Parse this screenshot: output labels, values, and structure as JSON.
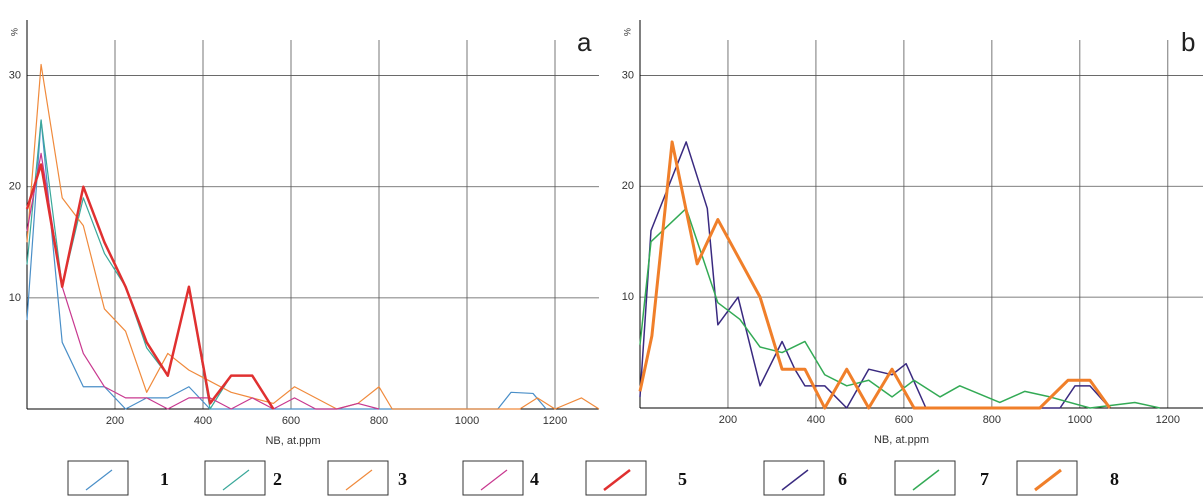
{
  "chart_data": [
    {
      "type": "line",
      "panel_label": "a",
      "x_label": "NB, at.ppm",
      "y_label": "%",
      "xlim": [
        0,
        1300
      ],
      "ylim": [
        0,
        35
      ],
      "xticks": [
        200,
        400,
        600,
        800,
        1000,
        1200
      ],
      "yticks": [
        10,
        20,
        30
      ],
      "grid": true,
      "legend": "bottom",
      "series": [
        {
          "name": "1",
          "color": "#4a8fc8",
          "line_width": 1.2,
          "x": [
            0,
            32,
            80,
            128,
            176,
            224,
            272,
            320,
            368,
            416,
            1070,
            1100,
            1150,
            1180
          ],
          "values": [
            8,
            26,
            6,
            2,
            2,
            0,
            1,
            1,
            2,
            0,
            0,
            1.5,
            1.4,
            0
          ]
        },
        {
          "name": "2",
          "color": "#3aa89a",
          "line_width": 1.2,
          "x": [
            0,
            32,
            80,
            128,
            176,
            224,
            272,
            320,
            368,
            416,
            464,
            512,
            560
          ],
          "values": [
            13,
            26,
            11,
            19,
            14,
            11,
            5.5,
            3,
            11,
            0,
            3,
            3,
            0
          ]
        },
        {
          "name": "3",
          "color": "#f08a3c",
          "line_width": 1.2,
          "x": [
            0,
            32,
            80,
            128,
            176,
            224,
            272,
            320,
            368,
            416,
            464,
            512,
            560,
            608,
            656,
            704,
            752,
            800,
            830,
            1120,
            1160,
            1200,
            1260,
            1300
          ],
          "values": [
            15,
            31,
            19,
            16.5,
            9,
            7,
            1.5,
            5,
            3.5,
            2.5,
            1.5,
            1,
            0.5,
            2,
            1,
            0,
            0.5,
            2,
            0,
            0,
            1,
            0,
            1,
            0
          ]
        },
        {
          "name": "4",
          "color": "#c8388f",
          "line_width": 1.2,
          "x": [
            0,
            32,
            80,
            128,
            176,
            224,
            272,
            320,
            368,
            416,
            464,
            512,
            560,
            608,
            656,
            704,
            752,
            800
          ],
          "values": [
            16,
            23,
            11,
            5,
            2,
            1,
            1,
            0,
            1,
            1,
            0,
            1,
            0,
            1,
            0,
            0,
            0.5,
            0
          ]
        },
        {
          "name": "5",
          "color": "#e03030",
          "line_width": 2.5,
          "x": [
            0,
            32,
            80,
            128,
            176,
            224,
            272,
            320,
            368,
            416,
            464,
            512,
            560
          ],
          "values": [
            18,
            22,
            11,
            20,
            15,
            11,
            6,
            3,
            11,
            0.5,
            3,
            3,
            0
          ]
        }
      ]
    },
    {
      "type": "line",
      "panel_label": "b",
      "x_label": "NB, at.ppm",
      "y_label": "%",
      "xlim": [
        0,
        1280
      ],
      "ylim": [
        0,
        35
      ],
      "xticks": [
        200,
        400,
        600,
        800,
        1000,
        1200
      ],
      "yticks": [
        10,
        20,
        30
      ],
      "grid": true,
      "legend": "bottom",
      "series": [
        {
          "name": "6",
          "color": "#3a2a80",
          "line_width": 1.5,
          "x": [
            0,
            25,
            105,
            153,
            177,
            223,
            273,
            323,
            352,
            375,
            420,
            470,
            520,
            573,
            605,
            650,
            955,
            989,
            1023,
            1068
          ],
          "values": [
            1,
            16,
            24,
            18,
            7.5,
            10,
            2,
            6,
            3.5,
            2,
            2,
            0,
            3.5,
            3,
            4,
            0,
            0,
            2,
            2,
            0
          ]
        },
        {
          "name": "7",
          "color": "#33aa55",
          "line_width": 1.5,
          "x": [
            0,
            25,
            105,
            177,
            227,
            273,
            323,
            375,
            420,
            470,
            520,
            573,
            623,
            682,
            727,
            818,
            875,
            932,
            1023,
            1125,
            1182
          ],
          "values": [
            5.7,
            15,
            18,
            9.5,
            8,
            5.5,
            5,
            6,
            3,
            2,
            2.5,
            1,
            2.5,
            1,
            2,
            0.5,
            1.5,
            1,
            0,
            0.5,
            0
          ]
        },
        {
          "name": "8",
          "color": "#f07f2a",
          "line_width": 3,
          "x": [
            0,
            27,
            73,
            130,
            177,
            273,
            323,
            375,
            420,
            470,
            520,
            573,
            623,
            909,
            973,
            1023,
            1068
          ],
          "values": [
            1.5,
            6.5,
            24,
            13,
            17,
            10,
            3.5,
            3.5,
            0,
            3.5,
            0,
            3.5,
            0,
            0,
            2.5,
            2.5,
            0
          ]
        }
      ]
    }
  ]
}
